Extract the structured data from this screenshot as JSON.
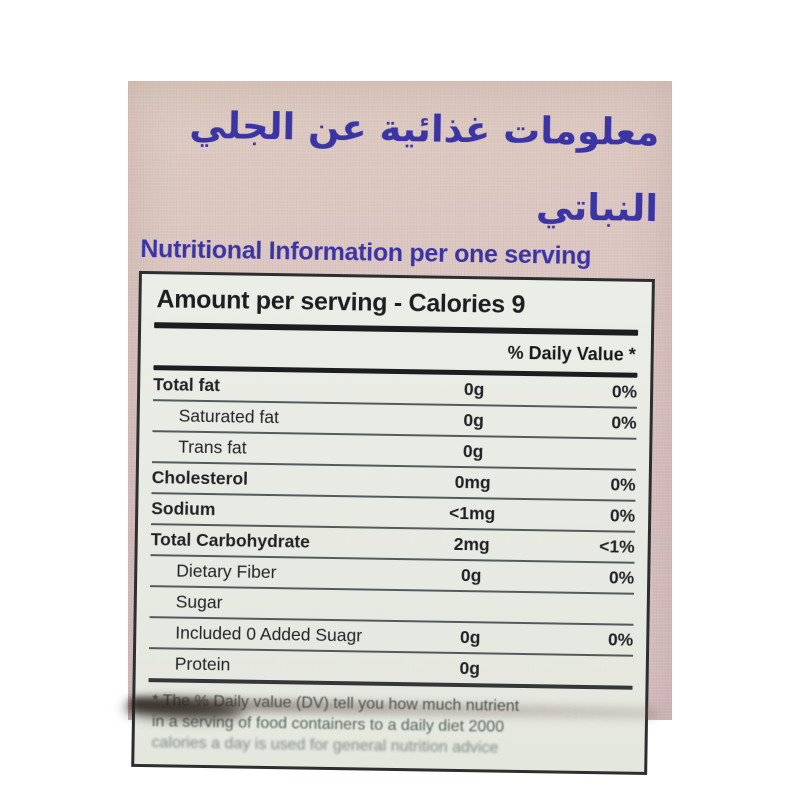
{
  "heading": {
    "arabic": "معلومات غذائية عن الجلي النباتي",
    "english": "Nutritional Information per one serving",
    "text_color": "#3a34a4"
  },
  "table": {
    "title": "Amount per serving - Calories 9",
    "dv_header": "% Daily Value *",
    "rows": [
      {
        "label": "Total fat",
        "amount": "0g",
        "dv": "0%"
      },
      {
        "label": "Saturated fat",
        "amount": "0g",
        "dv": "0%"
      },
      {
        "label": "Trans fat",
        "amount": "0g",
        "dv": ""
      },
      {
        "label": "Cholesterol",
        "amount": "0mg",
        "dv": "0%"
      },
      {
        "label": "Sodium",
        "amount": "<1mg",
        "dv": "0%"
      },
      {
        "label": "Total Carbohydrate",
        "amount": "2mg",
        "dv": "<1%"
      },
      {
        "label": "Dietary Fiber",
        "amount": "0g",
        "dv": "0%"
      },
      {
        "label": "Sugar",
        "amount": "",
        "dv": ""
      },
      {
        "label": "Included 0 Added Suagr",
        "amount": "0g",
        "dv": "0%"
      },
      {
        "label": "Protein",
        "amount": "0g",
        "dv": ""
      }
    ],
    "footnote_lines": [
      "* The % Daily value (DV) tell you how much nutrient",
      "in a serving of food containers to a daily diet 2000",
      "calories a day is used for general nutrition advice"
    ]
  },
  "colors": {
    "heading_blue": "#3a34a4",
    "label_background": "#e9ece4",
    "photo_pink": "#d9c3c1",
    "ink": "#1f2125"
  }
}
